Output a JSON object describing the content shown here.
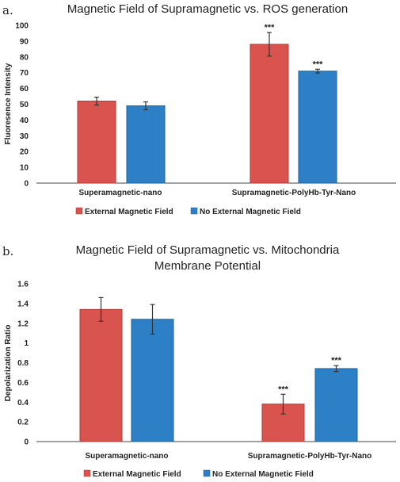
{
  "colors": {
    "external": "#D9534F",
    "external_stroke": "#B03A37",
    "no_external": "#2E80C6",
    "no_external_stroke": "#1F5F96",
    "axis": "#444444",
    "error": "#333333"
  },
  "chart_data": [
    {
      "panel_label": "a.",
      "type": "bar",
      "title": "Magnetic Field of Supramagnetic  vs. ROS generation",
      "title_line2": "",
      "ylabel": "Fluoresence Intensity",
      "ylim": [
        0,
        100
      ],
      "yticks": [
        0,
        10,
        20,
        30,
        40,
        50,
        60,
        70,
        80,
        90,
        100
      ],
      "ytick_labels": [
        "0",
        "10",
        "20",
        "30",
        "40",
        "50",
        "60",
        "70",
        "80",
        "90",
        "100"
      ],
      "categories": [
        "Superamagnetic-nano",
        "Supramagnetic-PolyHb-Tyr-Nano"
      ],
      "series": [
        {
          "name": "External Magnetic Field",
          "values": [
            52,
            88
          ],
          "errors": [
            2.5,
            7.5
          ],
          "sig": [
            "",
            "***"
          ]
        },
        {
          "name": "No External Magnetic Field",
          "values": [
            49,
            71
          ],
          "errors": [
            2.5,
            1.2
          ],
          "sig": [
            "",
            "***"
          ]
        }
      ],
      "legend_position": "bottom"
    },
    {
      "panel_label": "b.",
      "type": "bar",
      "title": "Magnetic Field of Supramagnetic  vs. Mitochondria",
      "title_line2": "Membrane Potential",
      "ylabel": "Depolarization Ratio",
      "ylim": [
        0,
        1.6
      ],
      "yticks": [
        0,
        0.2,
        0.4,
        0.6,
        0.8,
        1.0,
        1.2,
        1.4,
        1.6
      ],
      "ytick_labels": [
        "0",
        "0.2",
        "0.4",
        "0.6",
        "0.8",
        "1",
        "1.2",
        "1.4",
        "1.6"
      ],
      "categories": [
        "Superamagnetic-nano",
        "Supramagnetic-PolyHb-Tyr-Nano"
      ],
      "series": [
        {
          "name": "External Magnetic Field",
          "values": [
            1.34,
            0.38
          ],
          "errors": [
            0.12,
            0.1
          ],
          "sig": [
            "",
            "***"
          ]
        },
        {
          "name": "No External Magnetic Field",
          "values": [
            1.24,
            0.74
          ],
          "errors": [
            0.15,
            0.03
          ],
          "sig": [
            "",
            "***"
          ]
        }
      ],
      "legend_position": "bottom"
    }
  ]
}
